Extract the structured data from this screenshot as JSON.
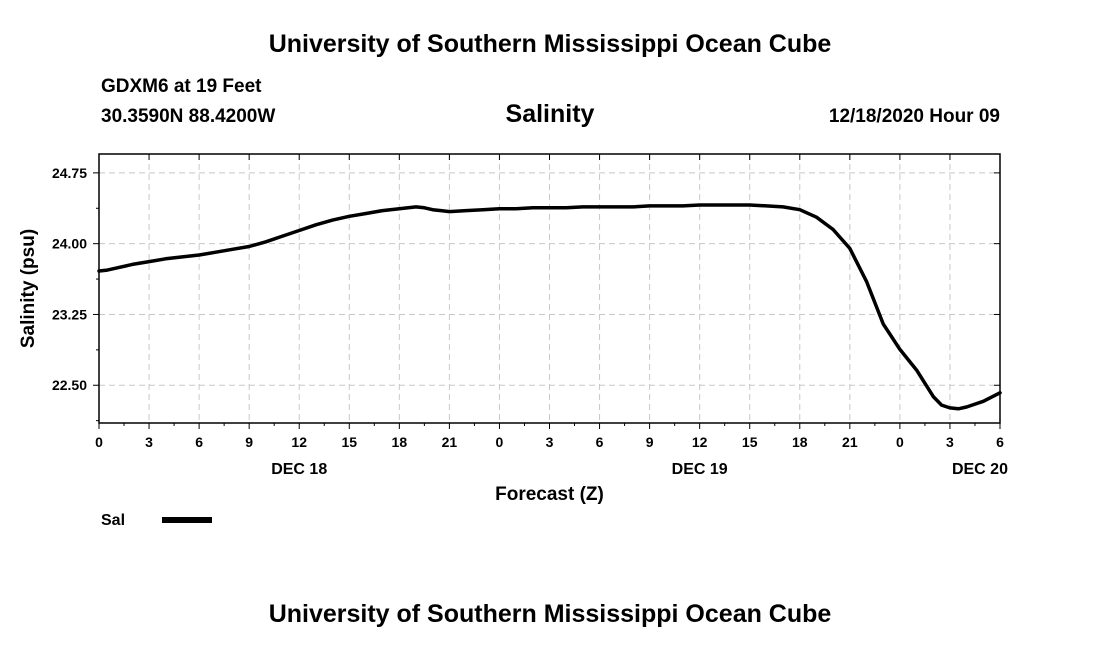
{
  "header": {
    "top_title": "University of Southern Mississippi Ocean Cube",
    "bottom_title": "University of Southern Mississippi Ocean Cube",
    "station": "GDXM6 at 19 Feet",
    "location": "30.3590N 88.4200W",
    "variable": "Salinity",
    "issued": "12/18/2020 Hour 09"
  },
  "chart_data": {
    "type": "line",
    "title": "Salinity",
    "xlabel": "Forecast (Z)",
    "ylabel": "Salinity (psu)",
    "x_range_hours": [
      0,
      54
    ],
    "ylim": [
      22.1,
      24.95
    ],
    "yticks": [
      22.5,
      23.25,
      24.0,
      24.75
    ],
    "ytick_labels": [
      "22.50",
      "23.25",
      "24.00",
      "24.75"
    ],
    "xticks": [
      0,
      3,
      6,
      9,
      12,
      15,
      18,
      21,
      24,
      27,
      30,
      33,
      36,
      39,
      42,
      45,
      48,
      51,
      54
    ],
    "xtick_labels": [
      "0",
      "3",
      "6",
      "9",
      "12",
      "15",
      "18",
      "21",
      "0",
      "3",
      "6",
      "9",
      "12",
      "15",
      "18",
      "21",
      "0",
      "3",
      "6"
    ],
    "date_labels": [
      {
        "hour": 12,
        "label": "DEC 18"
      },
      {
        "hour": 36,
        "label": "DEC 19"
      },
      {
        "hour": 52.8,
        "label": "DEC 20"
      }
    ],
    "grid": true,
    "legend": {
      "position": "bottom-left",
      "label": "Sal"
    },
    "series": [
      {
        "name": "Sal",
        "x": [
          0,
          0.5,
          1,
          2,
          3,
          4,
          5,
          6,
          7,
          8,
          9,
          10,
          11,
          12,
          13,
          14,
          15,
          16,
          17,
          18,
          19,
          19.5,
          20,
          20.5,
          21,
          22,
          23,
          24,
          25,
          26,
          27,
          28,
          29,
          30,
          31,
          32,
          33,
          34,
          35,
          36,
          37,
          38,
          39,
          40,
          41,
          42,
          43,
          44,
          45,
          46,
          47,
          48,
          49,
          50,
          50.5,
          51,
          51.5,
          52,
          52.5,
          53,
          54
        ],
        "y": [
          23.71,
          23.72,
          23.74,
          23.78,
          23.81,
          23.84,
          23.86,
          23.88,
          23.91,
          23.94,
          23.97,
          24.02,
          24.08,
          24.14,
          24.2,
          24.25,
          24.29,
          24.32,
          24.35,
          24.37,
          24.39,
          24.38,
          24.36,
          24.35,
          24.34,
          24.35,
          24.36,
          24.37,
          24.37,
          24.38,
          24.38,
          24.38,
          24.39,
          24.39,
          24.39,
          24.39,
          24.4,
          24.4,
          24.4,
          24.41,
          24.41,
          24.41,
          24.41,
          24.4,
          24.39,
          24.36,
          24.28,
          24.15,
          23.95,
          23.6,
          23.15,
          22.88,
          22.66,
          22.38,
          22.29,
          22.26,
          22.25,
          22.27,
          22.3,
          22.33,
          22.42
        ]
      }
    ]
  }
}
